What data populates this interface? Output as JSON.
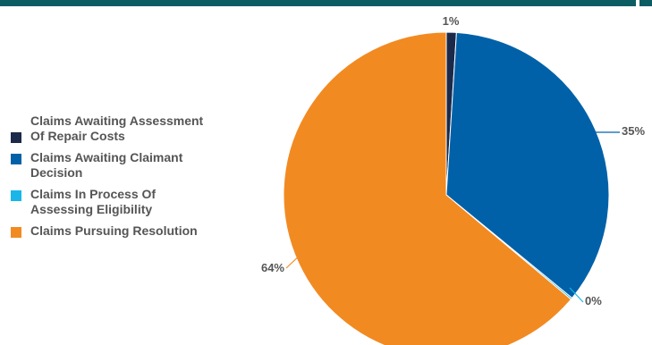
{
  "chart_data": {
    "type": "pie",
    "categories": [
      "Claims Awaiting Assessment Of Repair Costs",
      "Claims Awaiting Claimant Decision",
      "Claims In Process Of Assessing Eligibility",
      "Claims Pursuing Resolution"
    ],
    "values": [
      1,
      35,
      0,
      64
    ],
    "data_labels": [
      "1%",
      "35%",
      "0%",
      "64%"
    ],
    "colors": [
      "#1b2a4a",
      "#0061a8",
      "#1ab6e8",
      "#f28a22"
    ],
    "legend_position": "left"
  }
}
